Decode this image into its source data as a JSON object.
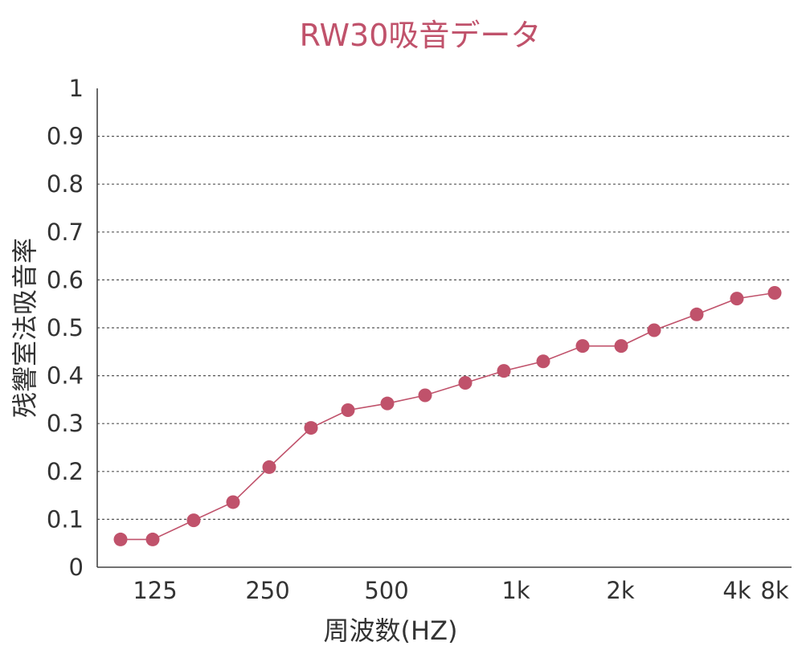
{
  "chart_data": {
    "type": "line",
    "title": "RW30吸音データ",
    "xlabel": "周波数(HZ)",
    "ylabel": "残響室法吸音率",
    "ylim": [
      0,
      1
    ],
    "yticks": [
      "0",
      "0.1",
      "0.2",
      "0.3",
      "0.4",
      "0.5",
      "0.6",
      "0.7",
      "0.8",
      "0.9",
      "1"
    ],
    "grid": true,
    "xtick_labels": [
      "125",
      "250",
      "500",
      "1k",
      "2k",
      "4k",
      "8k"
    ],
    "x_hz": [
      100,
      125,
      160,
      200,
      250,
      315,
      400,
      500,
      630,
      800,
      1000,
      1250,
      1600,
      2000,
      2500,
      3150,
      4000,
      5000
    ],
    "series": [
      {
        "values": [
          0.058,
          0.058,
          0.098,
          0.136,
          0.209,
          0.291,
          0.328,
          0.342,
          0.359,
          0.385,
          0.41,
          0.43,
          0.462,
          0.462,
          0.495,
          0.528,
          0.561,
          0.573
        ]
      }
    ],
    "colors": {
      "series": "#c0526b",
      "title": "#c0526b",
      "text": "#333333"
    }
  }
}
